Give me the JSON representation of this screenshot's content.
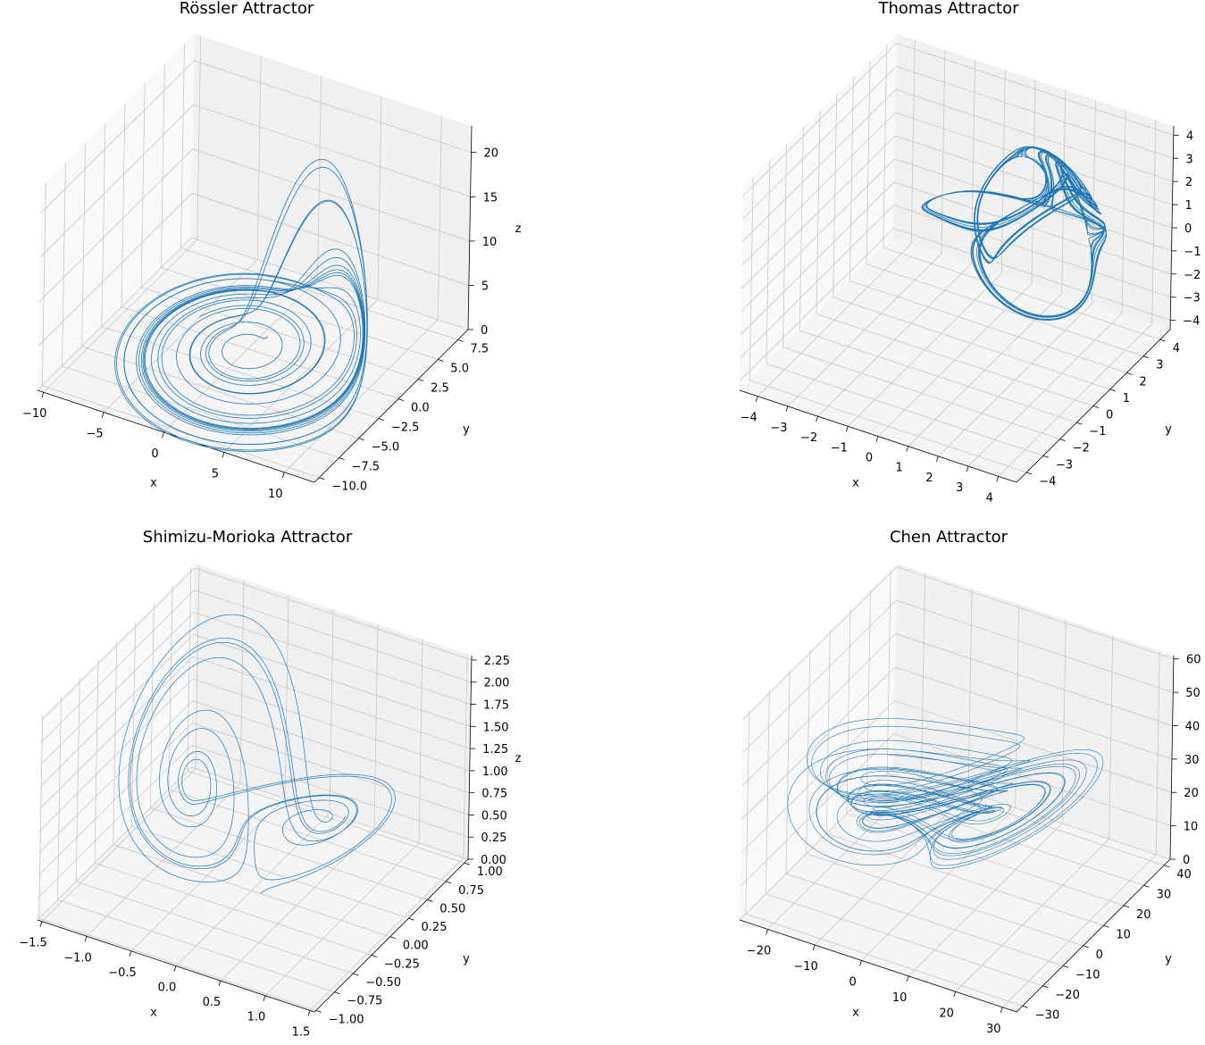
{
  "chart_data": [
    {
      "type": "line3d",
      "title": "Rössler Attractor",
      "xlabel": "x",
      "ylabel": "y",
      "zlabel": "z",
      "xlim": [
        -10.5,
        12.5
      ],
      "ylim": [
        -10.6,
        8.8
      ],
      "zlim": [
        0,
        23
      ],
      "xticks": [
        -10,
        -5,
        0,
        5,
        10
      ],
      "xticklabels": [
        "−10",
        "−5",
        "0",
        "5",
        "10"
      ],
      "yticks": [
        -10,
        -7.5,
        -5,
        -2.5,
        0,
        2.5,
        5,
        7.5
      ],
      "yticklabels": [
        "−10.0",
        "−7.5",
        "−5.0",
        "−2.5",
        "0.0",
        "2.5",
        "5.0",
        "7.5"
      ],
      "zticks": [
        0,
        5,
        10,
        15,
        20
      ],
      "zticklabels": [
        "0",
        "5",
        "10",
        "15",
        "20"
      ],
      "system": "rossler",
      "color": "#1f77b4"
    },
    {
      "type": "line3d",
      "title": "Thomas Attractor",
      "xlabel": "x",
      "ylabel": "y",
      "zlabel": "z",
      "xlim": [
        -4.6,
        4.6
      ],
      "ylim": [
        -4.6,
        4.6
      ],
      "zlim": [
        -4.4,
        4.4
      ],
      "xticks": [
        -4,
        -3,
        -2,
        -1,
        0,
        1,
        2,
        3,
        4
      ],
      "xticklabels": [
        "−4",
        "−3",
        "−2",
        "−1",
        "0",
        "1",
        "2",
        "3",
        "4"
      ],
      "yticks": [
        -4,
        -3,
        -2,
        -1,
        0,
        1,
        2,
        3,
        4
      ],
      "yticklabels": [
        "−4",
        "−3",
        "−2",
        "−1",
        "0",
        "1",
        "2",
        "3",
        "4"
      ],
      "zticks": [
        -4,
        -3,
        -2,
        -1,
        0,
        1,
        2,
        3,
        4
      ],
      "zticklabels": [
        "−4",
        "−3",
        "−2",
        "−1",
        "0",
        "1",
        "2",
        "3",
        "4"
      ],
      "system": "thomas",
      "color": "#1f77b4"
    },
    {
      "type": "line3d",
      "title": "Shimizu-Morioka Attractor",
      "xlabel": "x",
      "ylabel": "y",
      "zlabel": "z",
      "xlim": [
        -1.55,
        1.55
      ],
      "ylim": [
        -1.02,
        1.05
      ],
      "zlim": [
        0,
        2.3
      ],
      "xticks": [
        -1.5,
        -1,
        -0.5,
        0,
        0.5,
        1,
        1.5
      ],
      "xticklabels": [
        "−1.5",
        "−1.0",
        "−0.5",
        "0.0",
        "0.5",
        "1.0",
        "1.5"
      ],
      "yticks": [
        -1,
        -0.75,
        -0.5,
        -0.25,
        0,
        0.25,
        0.5,
        0.75,
        1
      ],
      "yticklabels": [
        "−1.00",
        "−0.75",
        "−0.50",
        "−0.25",
        "0.00",
        "0.25",
        "0.50",
        "0.75",
        "1.00"
      ],
      "zticks": [
        0,
        0.25,
        0.5,
        0.75,
        1,
        1.25,
        1.5,
        1.75,
        2,
        2.25
      ],
      "zticklabels": [
        "0.00",
        "0.25",
        "0.50",
        "0.75",
        "1.00",
        "1.25",
        "1.50",
        "1.75",
        "2.00",
        "2.25"
      ],
      "system": "shimizu",
      "color": "#1f77b4"
    },
    {
      "type": "line3d",
      "title": "Chen Attractor",
      "xlabel": "x",
      "ylabel": "y",
      "zlabel": "z",
      "xlim": [
        -26,
        33
      ],
      "ylim": [
        -33,
        43
      ],
      "zlim": [
        0,
        61
      ],
      "xticks": [
        -20,
        -10,
        0,
        10,
        20,
        30
      ],
      "xticklabels": [
        "−20",
        "−10",
        "0",
        "10",
        "20",
        "30"
      ],
      "yticks": [
        -30,
        -20,
        -10,
        0,
        10,
        20,
        30,
        40
      ],
      "yticklabels": [
        "−30",
        "−20",
        "−10",
        "0",
        "10",
        "20",
        "30",
        "40"
      ],
      "zticks": [
        0,
        10,
        20,
        30,
        40,
        50,
        60
      ],
      "zticklabels": [
        "0",
        "10",
        "20",
        "30",
        "40",
        "50",
        "60"
      ],
      "system": "chen",
      "color": "#1f77b4"
    }
  ]
}
